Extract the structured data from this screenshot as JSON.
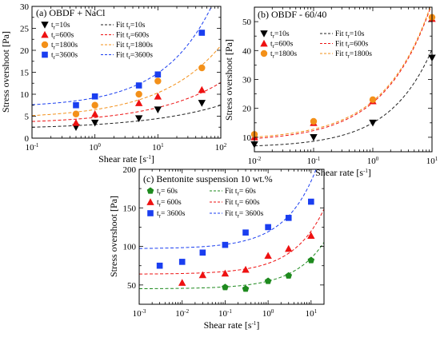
{
  "chart_data": [
    {
      "type": "scatter",
      "panel_label": "(a) OBDF + NaCl",
      "xlabel": "Shear rate [s",
      "xlabel_sup": "-1",
      "xlabel_close": "]",
      "ylabel": "Stress overshoot  [Pa]",
      "xscale": "log",
      "xlim": [
        0.1,
        100
      ],
      "ylim": [
        0,
        30
      ],
      "xticks": [
        0.1,
        1,
        10,
        100
      ],
      "xtick_base": [
        "10",
        "10",
        "10",
        "10"
      ],
      "xtick_exp": [
        "-1",
        "0",
        "1",
        "2"
      ],
      "yticks": [
        0,
        5,
        10,
        15,
        20,
        25,
        30
      ],
      "ytick_labels": [
        "0",
        "5",
        "10",
        "15",
        "20",
        "25",
        "30"
      ],
      "legend_markers": [
        {
          "prefix": "t",
          "sub": "r",
          "text": "=10s"
        },
        {
          "prefix": "t",
          "sub": "r",
          "text": "=600s"
        },
        {
          "prefix": "t",
          "sub": "r",
          "text": "=1800s"
        },
        {
          "prefix": "t",
          "sub": "r",
          "text": "=3600s"
        }
      ],
      "legend_fits": [
        {
          "prefix": "Fit t",
          "sub": "r",
          "text": "=10s"
        },
        {
          "prefix": "Fit t",
          "sub": "r",
          "text": "=600s"
        },
        {
          "prefix": "Fit t",
          "sub": "r",
          "text": "=1800s"
        },
        {
          "prefix": "Fit t",
          "sub": "r",
          "text": "=3600s"
        }
      ],
      "series": [
        {
          "marker": "triangle-down",
          "color": "#000000",
          "fit_color": "#222222",
          "x": [
            0.5,
            1,
            5,
            10,
            50
          ],
          "y": [
            2.5,
            3.5,
            4.5,
            6.5,
            8
          ],
          "fit": {
            "a": 2.0,
            "b": 1.1,
            "n": 0.35
          }
        },
        {
          "marker": "triangle-up",
          "color": "#ee1111",
          "fit_color": "#ee1111",
          "x": [
            0.5,
            1,
            5,
            10,
            50
          ],
          "y": [
            3.5,
            5.5,
            8,
            9.5,
            11
          ],
          "fit": {
            "a": 3.2,
            "b": 1.5,
            "n": 0.4
          }
        },
        {
          "marker": "circle",
          "color": "#f39019",
          "fit_color": "#f39019",
          "x": [
            0.5,
            1,
            5,
            10,
            50
          ],
          "y": [
            5.5,
            7.5,
            10,
            13,
            16
          ],
          "fit": {
            "a": 4.4,
            "b": 2.1,
            "n": 0.45
          }
        },
        {
          "marker": "square",
          "color": "#1a3ef0",
          "fit_color": "#1a3ef0",
          "x": [
            0.5,
            1,
            5,
            10,
            50
          ],
          "y": [
            7.5,
            9.5,
            12,
            14.5,
            24
          ],
          "fit": {
            "a": 7.0,
            "b": 2.2,
            "n": 0.55
          }
        }
      ]
    },
    {
      "type": "scatter",
      "panel_label": "(b) OBDF - 60/40",
      "xlabel": "Shear rate [s",
      "xlabel_sup": "-1",
      "xlabel_close": "]",
      "ylabel": "Stress overshoot  [Pa]",
      "xscale": "log",
      "xlim": [
        0.01,
        10
      ],
      "ylim": [
        5,
        55
      ],
      "xticks": [
        0.01,
        0.1,
        1,
        10
      ],
      "xtick_base": [
        "10",
        "10",
        "10",
        "10"
      ],
      "xtick_exp": [
        "-2",
        "-1",
        "0",
        "1"
      ],
      "yticks": [
        10,
        20,
        30,
        40,
        50
      ],
      "ytick_labels": [
        "10",
        "20",
        "30",
        "40",
        "50"
      ],
      "legend_markers": [
        {
          "prefix": "t",
          "sub": "r",
          "text": "=10s"
        },
        {
          "prefix": "t",
          "sub": "r",
          "text": "=600s"
        },
        {
          "prefix": "t",
          "sub": "r",
          "text": "=1800s"
        }
      ],
      "legend_fits": [
        {
          "prefix": "Fit t",
          "sub": "r",
          "text": "=10s"
        },
        {
          "prefix": "Fit t",
          "sub": "r",
          "text": "=600s"
        },
        {
          "prefix": "Fit t",
          "sub": "r",
          "text": "=1800s"
        }
      ],
      "series": [
        {
          "marker": "triangle-down",
          "color": "#000000",
          "fit_color": "#222222",
          "x": [
            0.01,
            0.1,
            1,
            10
          ],
          "y": [
            7.5,
            10,
            15,
            37.5
          ],
          "fit": {
            "a": 6.5,
            "b": 8.5,
            "n": 0.6
          }
        },
        {
          "marker": "triangle-up",
          "color": "#ee1111",
          "fit_color": "#ee1111",
          "x": [
            0.01,
            0.1,
            1,
            10
          ],
          "y": [
            10,
            15,
            22.5,
            51
          ],
          "fit": {
            "a": 8.5,
            "b": 13.5,
            "n": 0.55
          }
        },
        {
          "marker": "circle",
          "color": "#f39019",
          "fit_color": "#f39019",
          "x": [
            0.01,
            0.1,
            1,
            10
          ],
          "y": [
            11,
            15.5,
            23,
            51.5
          ],
          "fit": {
            "a": 9.0,
            "b": 13.5,
            "n": 0.55
          }
        }
      ]
    },
    {
      "type": "scatter",
      "panel_label": "(c) Bentonite suspension 10 wt.%",
      "xlabel": "Shear rate [s",
      "xlabel_sup": "-1",
      "xlabel_close": "]",
      "ylabel": "Stress overshoot  [Pa]",
      "xscale": "log",
      "xlim": [
        0.001,
        20
      ],
      "ylim": [
        25,
        200
      ],
      "xticks": [
        0.001,
        0.01,
        0.1,
        1,
        10
      ],
      "xtick_base": [
        "10",
        "10",
        "10",
        "10",
        "10"
      ],
      "xtick_exp": [
        "-3",
        "-2",
        "-1",
        "0",
        "1"
      ],
      "yticks": [
        50,
        100,
        150,
        200
      ],
      "ytick_labels": [
        "50",
        "100",
        "150",
        "200"
      ],
      "legend_markers": [
        {
          "prefix": "t",
          "sub": "r",
          "text": "= 60s"
        },
        {
          "prefix": "t",
          "sub": "r",
          "text": "= 600s"
        },
        {
          "prefix": "t",
          "sub": "r",
          "text": "= 3600s"
        }
      ],
      "legend_fits": [
        {
          "prefix": "Fit t",
          "sub": "r",
          "text": "= 60s"
        },
        {
          "prefix": "Fit t",
          "sub": "r",
          "text": "= 600s"
        },
        {
          "prefix": "Fit t",
          "sub": "r",
          "text": "= 3600s"
        }
      ],
      "series": [
        {
          "marker": "pentagon",
          "color": "#1e8a1e",
          "fit_color": "#1e8a1e",
          "x": [
            0.1,
            0.3,
            1,
            3,
            10
          ],
          "y": [
            47,
            45,
            55,
            62,
            82
          ],
          "fit": {
            "a": 45,
            "b": 10,
            "n": 0.6
          }
        },
        {
          "marker": "triangle-up",
          "color": "#ee1111",
          "fit_color": "#ee1111",
          "x": [
            0.01,
            0.03,
            0.1,
            0.3,
            1,
            3,
            10
          ],
          "y": [
            53,
            63,
            65,
            70,
            88,
            97,
            114
          ],
          "fit": {
            "a": 64,
            "b": 14,
            "n": 0.6
          }
        },
        {
          "marker": "square",
          "color": "#1a3ef0",
          "fit_color": "#1a3ef0",
          "x": [
            0.003,
            0.01,
            0.03,
            0.1,
            0.3,
            1,
            3,
            10
          ],
          "y": [
            75,
            80,
            92,
            102,
            118,
            125,
            137,
            158
          ],
          "fit": {
            "a": 97,
            "b": 22,
            "n": 0.6
          }
        }
      ]
    }
  ]
}
